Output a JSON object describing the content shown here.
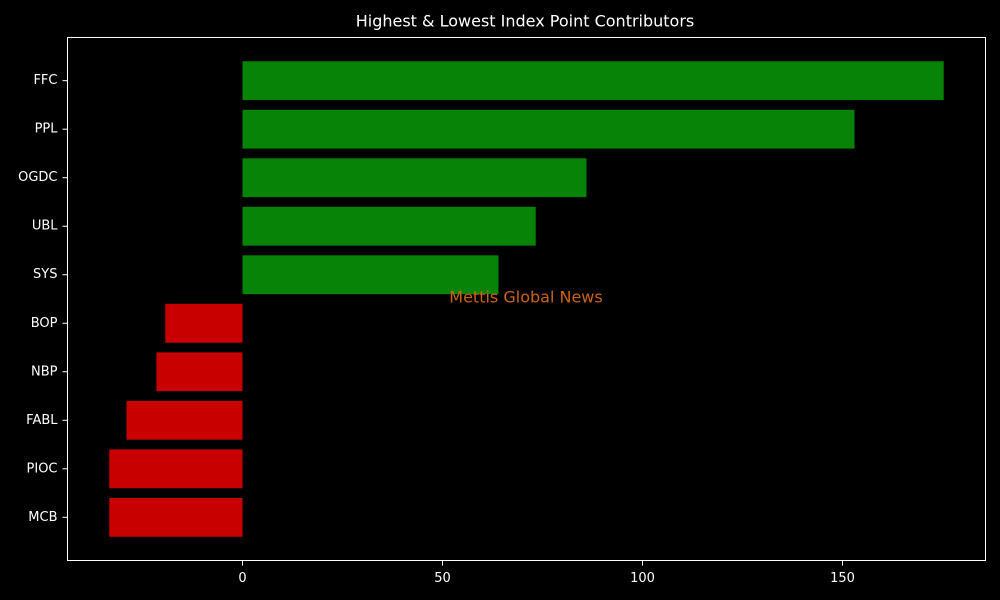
{
  "chart_data": {
    "type": "bar",
    "orientation": "horizontal",
    "title": "Highest & Lowest Index Point Contributors",
    "watermark": "Mettis Global News",
    "categories": [
      "FFC",
      "PPL",
      "OGDC",
      "UBL",
      "SYS",
      "BOP",
      "NBP",
      "FABL",
      "PIOC",
      "MCB"
    ],
    "values": [
      175.3,
      153,
      86,
      73.3,
      64,
      -19.3,
      -21.5,
      -29,
      -33.3,
      -33.3
    ],
    "colors": [
      "#078407",
      "#078407",
      "#078407",
      "#078407",
      "#078407",
      "#c80000",
      "#c80000",
      "#c80000",
      "#c80000",
      "#c80000"
    ],
    "xlim": [
      -43.75,
      185.75
    ],
    "xticks": [
      0,
      50,
      100,
      150
    ],
    "grid": false
  }
}
